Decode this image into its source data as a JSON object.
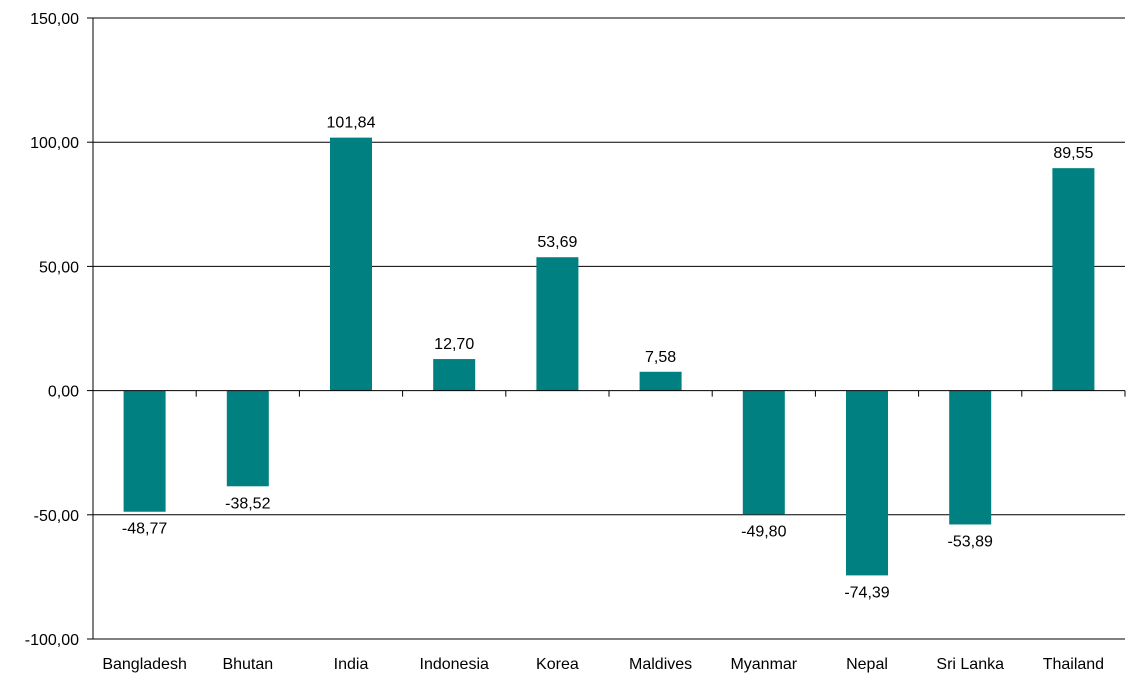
{
  "chart_data": {
    "type": "bar",
    "title": "",
    "xlabel": "",
    "ylabel": "",
    "categories": [
      "Bangladesh",
      "Bhutan",
      "India",
      "Indonesia",
      "Korea",
      "Maldives",
      "Myanmar",
      "Nepal",
      "Sri Lanka",
      "Thailand"
    ],
    "values": [
      -48.77,
      -38.52,
      101.84,
      12.7,
      53.69,
      7.58,
      -49.8,
      -74.39,
      -53.89,
      89.55
    ],
    "value_labels": [
      "-48,77",
      "-38,52",
      "101,84",
      "12,70",
      "53,69",
      "7,58",
      "-49,80",
      "-74,39",
      "-53,89",
      "89,55"
    ],
    "ylim": [
      -100,
      150
    ],
    "yticks": [
      -100,
      -50,
      0,
      50,
      100,
      150
    ],
    "ytick_labels": [
      "-100,00",
      "-50,00",
      "0,00",
      "50,00",
      "100,00",
      "150,00"
    ],
    "grid": true,
    "legend": "none",
    "bar_color": "#008080",
    "axis_color": "#000000"
  }
}
